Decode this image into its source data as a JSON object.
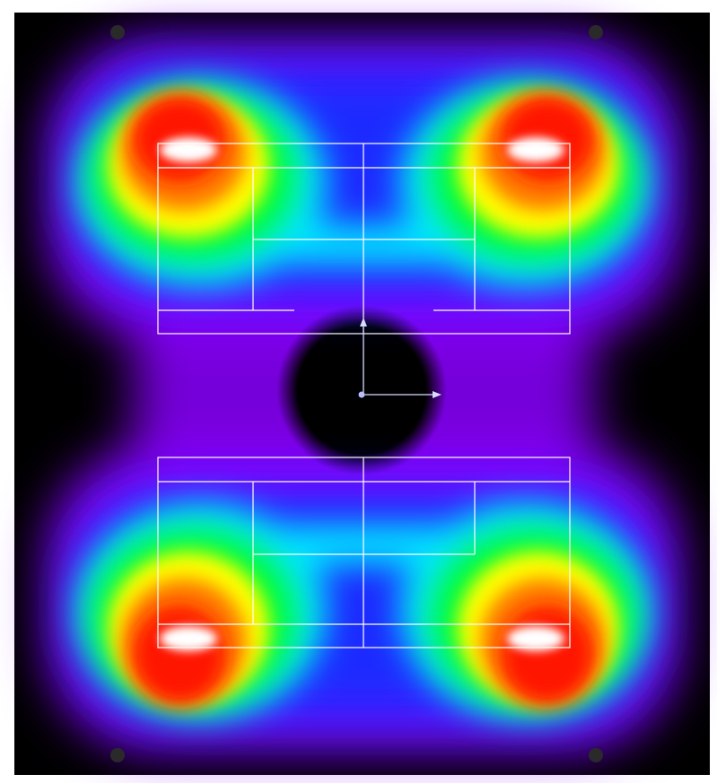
{
  "view": {
    "kind": "heatmap",
    "colormap": [
      "#000000",
      "#8a00ff",
      "#1a2cff",
      "#00e6ff",
      "#00ff2a",
      "#ffff00",
      "#ff7a00",
      "#ff1500",
      "#ffffff"
    ],
    "background": "#000000",
    "frame_color": "#ffffff",
    "line_color": "#ffffff",
    "marker_color": "#2a2a2a",
    "axis_color": "#d8dcff",
    "hotspot_color": "#ffffff"
  }
}
